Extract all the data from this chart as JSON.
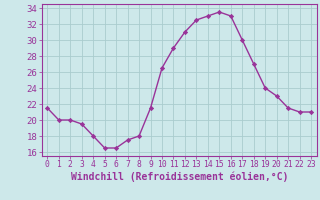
{
  "x": [
    0,
    1,
    2,
    3,
    4,
    5,
    6,
    7,
    8,
    9,
    10,
    11,
    12,
    13,
    14,
    15,
    16,
    17,
    18,
    19,
    20,
    21,
    22,
    23
  ],
  "y": [
    21.5,
    20.0,
    20.0,
    19.5,
    18.0,
    16.5,
    16.5,
    17.5,
    18.0,
    21.5,
    26.5,
    29.0,
    31.0,
    32.5,
    33.0,
    33.5,
    33.0,
    30.0,
    27.0,
    24.0,
    23.0,
    21.5,
    21.0,
    21.0
  ],
  "line_color": "#993399",
  "marker": "D",
  "markersize": 2.2,
  "linewidth": 1.0,
  "background_color": "#cde8ea",
  "grid_color": "#aaccce",
  "xlabel": "Windchill (Refroidissement éolien,°C)",
  "xlabel_color": "#993399",
  "xlabel_fontsize": 7,
  "ylabel_ticks": [
    16,
    18,
    20,
    22,
    24,
    26,
    28,
    30,
    32,
    34
  ],
  "ytick_labels": [
    "16",
    "18",
    "20",
    "22",
    "24",
    "26",
    "28",
    "30",
    "32",
    "34"
  ],
  "xticks": [
    0,
    1,
    2,
    3,
    4,
    5,
    6,
    7,
    8,
    9,
    10,
    11,
    12,
    13,
    14,
    15,
    16,
    17,
    18,
    19,
    20,
    21,
    22,
    23
  ],
  "xtick_labels": [
    "0",
    "1",
    "2",
    "3",
    "4",
    "5",
    "6",
    "7",
    "8",
    "9",
    "10",
    "11",
    "12",
    "13",
    "14",
    "15",
    "16",
    "17",
    "18",
    "19",
    "20",
    "21",
    "22",
    "23"
  ],
  "xlim": [
    -0.5,
    23.5
  ],
  "ylim": [
    15.5,
    34.5
  ],
  "tick_color": "#993399",
  "ytick_fontsize": 6.5,
  "xtick_fontsize": 5.8,
  "spine_color": "#993399"
}
